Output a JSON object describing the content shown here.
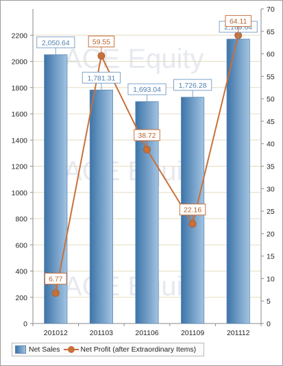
{
  "colors": {
    "bar_dark": "#3d74a8",
    "bar_light": "#a3c4e2",
    "bar_label_border": "#7ea3c8",
    "bar_label_text": "#4f7fae",
    "line": "#c8703a",
    "line_label_text": "#b4622d",
    "grid": "#e4dcc0"
  },
  "watermark": "ACE Equity",
  "chart_data": {
    "type": "bar",
    "categories": [
      "201012",
      "201103",
      "201106",
      "201109",
      "201112"
    ],
    "series": [
      {
        "name": "Net Sales",
        "type": "bar",
        "axis": "left",
        "values": [
          2050.64,
          1781.31,
          1693.04,
          1726.28,
          2169.64
        ],
        "labels": [
          "2,050.64",
          "1,781.31",
          "1,693.04",
          "1,726.28",
          "2,169.64"
        ]
      },
      {
        "name": "Net Profit (after Extraordinary Items)",
        "type": "line",
        "axis": "right",
        "values": [
          6.77,
          59.55,
          38.72,
          22.16,
          64.11
        ],
        "labels": [
          "6.77",
          "59.55",
          "38.72",
          "22.16",
          "64.11"
        ]
      }
    ],
    "y_left": {
      "ylim": [
        0,
        2400
      ],
      "ticks": [
        0,
        200,
        400,
        600,
        800,
        1000,
        1200,
        1400,
        1600,
        1800,
        2000,
        2200
      ]
    },
    "y_right": {
      "ylim": [
        0,
        70
      ],
      "ticks": [
        0,
        5,
        10,
        15,
        20,
        25,
        30,
        35,
        40,
        45,
        50,
        55,
        60,
        65,
        70
      ]
    },
    "grid": true,
    "legend": "bottom-left"
  }
}
